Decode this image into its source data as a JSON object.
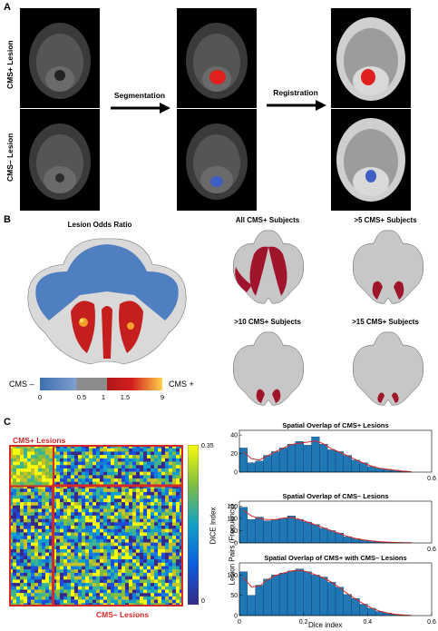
{
  "panel_a": {
    "letter": "A",
    "row_labels": [
      "CMS+ Lesion",
      "CMS– Lesion"
    ],
    "arrow_labels": [
      "Segmentation",
      "Registration"
    ]
  },
  "panel_b": {
    "letter": "B",
    "odds_title": "Lesion Odds Ratio",
    "flat_titles": [
      "All CMS+ Subjects",
      ">5 CMS+ Subjects",
      ">10 CMS+ Subjects",
      ">15 CMS+ Subjects"
    ],
    "colorbar": {
      "left_label": "CMS –",
      "right_label": "CMS +",
      "ticks": [
        "0",
        "0.5",
        "1",
        "1.5",
        "9"
      ],
      "colors": [
        "#3f6fb0",
        "#7fa0cf",
        "#8c8c8c",
        "#d21f1f",
        "#ffd24a"
      ]
    }
  },
  "panel_c": {
    "letter": "C",
    "matrix_labels": {
      "top": "CMS+ Lesions",
      "bottom": "CMS– Lesions"
    },
    "colorbar_label": "DICE Index",
    "colorbar_ticks": [
      "0.35",
      "0"
    ],
    "hist_ylabel": "Lesion Pairs (Frequency)",
    "hist_xlabel": "Dice index",
    "accent": "#d62828",
    "bar_color": "#1f77b4"
  },
  "chart_data": [
    {
      "type": "bar",
      "title": "Spatial Overlap of CMS+ Lesions",
      "xlabel": "Dice index",
      "ylabel": "Lesion Pairs (Frequency)",
      "xlim": [
        0,
        0.6
      ],
      "ylim": [
        0,
        45
      ],
      "yticks": [
        0,
        20,
        40
      ],
      "bin_width": 0.025,
      "x": [
        0.0125,
        0.0375,
        0.0625,
        0.0875,
        0.1125,
        0.1375,
        0.1625,
        0.1875,
        0.2125,
        0.2375,
        0.2625,
        0.2875,
        0.3125,
        0.3375,
        0.3625,
        0.3875,
        0.4125,
        0.4375,
        0.4625,
        0.4875,
        0.5125,
        0.5375
      ],
      "values": [
        26,
        10,
        12,
        18,
        22,
        26,
        30,
        33,
        29,
        38,
        30,
        24,
        22,
        18,
        13,
        10,
        6,
        4,
        3,
        2,
        1,
        0
      ]
    },
    {
      "type": "bar",
      "title": "Spatial Overlap of CMS– Lesions",
      "xlabel": "Dice index",
      "ylabel": "Lesion Pairs (Frequency)",
      "xlim": [
        0,
        0.6
      ],
      "ylim": [
        0,
        170
      ],
      "yticks": [
        0,
        50,
        100,
        150
      ],
      "bin_width": 0.025,
      "x": [
        0.0125,
        0.0375,
        0.0625,
        0.0875,
        0.1125,
        0.1375,
        0.1625,
        0.1875,
        0.2125,
        0.2375,
        0.2625,
        0.2875,
        0.3125,
        0.3375,
        0.3625,
        0.3875,
        0.4125,
        0.4375,
        0.4625,
        0.4875,
        0.5125,
        0.5375
      ],
      "values": [
        145,
        95,
        105,
        90,
        95,
        100,
        110,
        95,
        85,
        75,
        60,
        50,
        40,
        25,
        18,
        12,
        8,
        5,
        3,
        2,
        1,
        0
      ]
    },
    {
      "type": "bar",
      "title": "Spatial Overlap of CMS+ with CMS– Lesions",
      "xlabel": "Dice index",
      "ylabel": "Lesion Pairs (Frequency)",
      "xlim": [
        0,
        0.6
      ],
      "ylim": [
        0,
        130
      ],
      "yticks": [
        0,
        50,
        100
      ],
      "xticks": [
        0,
        0.2,
        0.4,
        0.6
      ],
      "bin_width": 0.025,
      "x": [
        0.0125,
        0.0375,
        0.0625,
        0.0875,
        0.1125,
        0.1375,
        0.1625,
        0.1875,
        0.2125,
        0.2375,
        0.2625,
        0.2875,
        0.3125,
        0.3375,
        0.3625,
        0.3875,
        0.4125,
        0.4375,
        0.4625,
        0.4875,
        0.5125,
        0.5375
      ],
      "values": [
        108,
        50,
        75,
        90,
        100,
        105,
        110,
        115,
        108,
        100,
        95,
        82,
        70,
        52,
        42,
        28,
        18,
        10,
        6,
        3,
        1,
        0
      ]
    }
  ]
}
